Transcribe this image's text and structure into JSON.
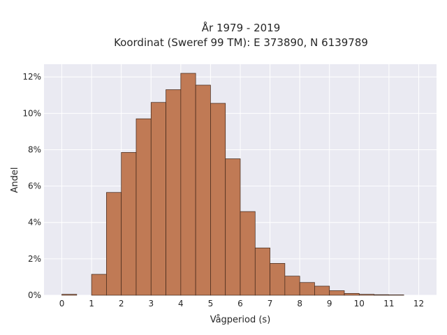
{
  "chart_data": {
    "type": "bar",
    "title_lines": [
      "År 1979 - 2019",
      "Koordinat (Sweref 99 TM): E 373890, N 6139789"
    ],
    "xlabel": "Vågperiod (s)",
    "ylabel": "Andel",
    "xlim": [
      -0.6,
      12.6
    ],
    "ylim": [
      0,
      12.7
    ],
    "x_ticks": [
      0,
      1,
      2,
      3,
      4,
      5,
      6,
      7,
      8,
      9,
      10,
      11,
      12
    ],
    "y_ticks": [
      0,
      2,
      4,
      6,
      8,
      10,
      12
    ],
    "y_tick_suffix": "%",
    "bin_width": 0.5,
    "bins": [
      {
        "start": 0.0,
        "value": 0.05
      },
      {
        "start": 1.0,
        "value": 1.15
      },
      {
        "start": 1.5,
        "value": 5.65
      },
      {
        "start": 2.0,
        "value": 7.85
      },
      {
        "start": 2.5,
        "value": 9.7
      },
      {
        "start": 3.0,
        "value": 10.6
      },
      {
        "start": 3.5,
        "value": 11.3
      },
      {
        "start": 4.0,
        "value": 12.2
      },
      {
        "start": 4.5,
        "value": 11.55
      },
      {
        "start": 5.0,
        "value": 10.55
      },
      {
        "start": 5.5,
        "value": 7.5
      },
      {
        "start": 6.0,
        "value": 4.6
      },
      {
        "start": 6.5,
        "value": 2.6
      },
      {
        "start": 7.0,
        "value": 1.75
      },
      {
        "start": 7.5,
        "value": 1.05
      },
      {
        "start": 8.0,
        "value": 0.7
      },
      {
        "start": 8.5,
        "value": 0.5
      },
      {
        "start": 9.0,
        "value": 0.25
      },
      {
        "start": 9.5,
        "value": 0.1
      },
      {
        "start": 10.0,
        "value": 0.05
      },
      {
        "start": 10.5,
        "value": 0.03
      },
      {
        "start": 11.0,
        "value": 0.02
      }
    ],
    "grid": true,
    "colors": {
      "bar_fill": "#c07a55",
      "bar_edge": "#3d2418",
      "plot_background": "#eaeaf2",
      "grid": "#ffffff"
    }
  }
}
